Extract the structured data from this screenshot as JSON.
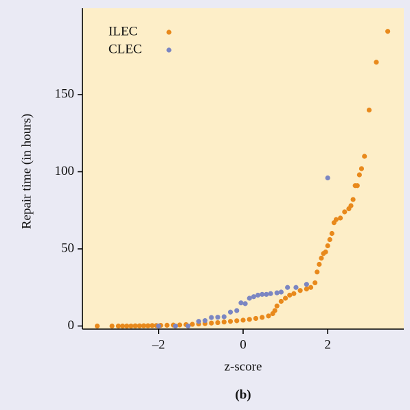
{
  "chart_data": {
    "type": "scatter",
    "xlabel": "z-score",
    "ylabel": "Repair time (in hours)",
    "caption": "(b)",
    "xlim": [
      -3.8,
      3.8
    ],
    "ylim": [
      -2,
      206
    ],
    "xticks": [
      {
        "value": -2,
        "label": "–2"
      },
      0,
      2
    ],
    "yticks": [
      0,
      50,
      100,
      150
    ],
    "legend": "upper left",
    "series": [
      {
        "name": "ILEC",
        "color": "#e8891c",
        "x": [
          -3.45,
          -3.1,
          -2.95,
          -2.85,
          -2.75,
          -2.65,
          -2.55,
          -2.45,
          -2.35,
          -2.25,
          -2.15,
          -2.05,
          -1.95,
          -1.8,
          -1.65,
          -1.5,
          -1.35,
          -1.2,
          -1.05,
          -0.9,
          -0.75,
          -0.6,
          -0.45,
          -0.3,
          -0.15,
          0,
          0.15,
          0.3,
          0.45,
          0.6,
          0.7,
          0.75,
          0.8,
          0.9,
          1.0,
          1.1,
          1.2,
          1.35,
          1.5,
          1.6,
          1.7,
          1.75,
          1.8,
          1.85,
          1.9,
          1.95,
          2.0,
          2.05,
          2.1,
          2.15,
          2.2,
          2.3,
          2.4,
          2.5,
          2.55,
          2.6,
          2.65,
          2.7,
          2.75,
          2.8,
          2.87,
          2.98,
          3.15,
          3.42
        ],
        "y": [
          0,
          0,
          0,
          0,
          0,
          0,
          0.1,
          0.1,
          0.2,
          0.2,
          0.3,
          0.3,
          0.4,
          0.5,
          0.6,
          0.7,
          0.9,
          1.1,
          1.3,
          1.6,
          1.9,
          2.2,
          2.6,
          3.0,
          3.4,
          3.8,
          4.3,
          4.9,
          5.6,
          6.5,
          8,
          10,
          13,
          16,
          18,
          20,
          21,
          23,
          24,
          25,
          28,
          35,
          40,
          44,
          47,
          48,
          52,
          56,
          60,
          67,
          69,
          70,
          74,
          76,
          78,
          82,
          91,
          91,
          98,
          102,
          110,
          140,
          171,
          191
        ]
      },
      {
        "name": "CLEC",
        "color": "#7b86c2",
        "x": [
          -2.0,
          -1.6,
          -1.3,
          -1.05,
          -0.9,
          -0.75,
          -0.6,
          -0.45,
          -0.3,
          -0.15,
          -0.05,
          0.05,
          0.15,
          0.25,
          0.35,
          0.45,
          0.55,
          0.65,
          0.8,
          0.9,
          1.05,
          1.25,
          1.5,
          2.0
        ],
        "y": [
          0,
          0,
          0,
          3,
          3.5,
          5.5,
          5.7,
          6,
          9,
          10,
          15,
          14.5,
          18,
          19,
          20,
          20.5,
          20.5,
          21,
          21.5,
          22,
          25,
          25,
          27,
          96
        ]
      }
    ]
  }
}
